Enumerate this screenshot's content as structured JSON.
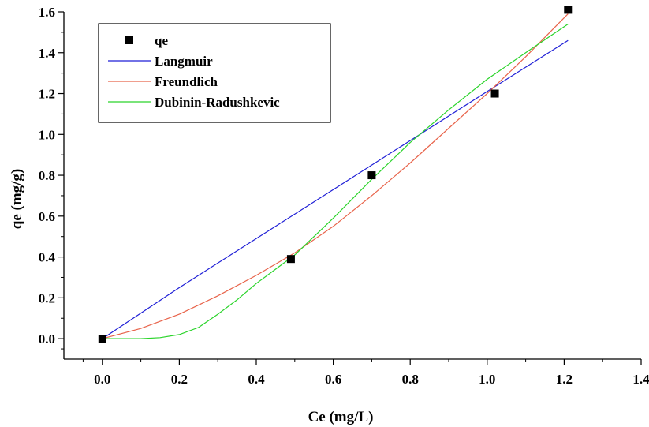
{
  "chart_data": {
    "type": "scatter",
    "xlabel": "Ce (mg/L)",
    "ylabel": "qe (mg/g)",
    "xlim": [
      -0.1,
      1.4
    ],
    "ylim": [
      -0.1,
      1.6
    ],
    "x_ticks": [
      "0.0",
      "0.2",
      "0.4",
      "0.6",
      "0.8",
      "1.0",
      "1.2",
      "1.4"
    ],
    "y_ticks": [
      "0.0",
      "0.2",
      "0.4",
      "0.6",
      "0.8",
      "1.0",
      "1.2",
      "1.4",
      "1.6"
    ],
    "legend_position": "top-left",
    "series": [
      {
        "name": "qe",
        "kind": "markers",
        "color": "#000000",
        "x": [
          0.0,
          0.49,
          0.7,
          1.02,
          1.21
        ],
        "y": [
          0.0,
          0.39,
          0.8,
          1.2,
          1.61
        ]
      },
      {
        "name": "Langmuir",
        "kind": "line",
        "color": "#1f1fd6",
        "x": [
          0.0,
          0.2,
          0.4,
          0.6,
          0.8,
          1.0,
          1.21
        ],
        "y": [
          0.0,
          0.25,
          0.49,
          0.73,
          0.97,
          1.21,
          1.46
        ]
      },
      {
        "name": "Freundlich",
        "kind": "line",
        "color": "#e8634a",
        "x": [
          0.0,
          0.1,
          0.2,
          0.3,
          0.4,
          0.5,
          0.6,
          0.7,
          0.8,
          0.9,
          1.0,
          1.1,
          1.21
        ],
        "y": [
          0.0,
          0.05,
          0.12,
          0.21,
          0.31,
          0.42,
          0.55,
          0.7,
          0.86,
          1.03,
          1.2,
          1.38,
          1.59
        ]
      },
      {
        "name": "Dubinin-Radushkevic",
        "kind": "line",
        "color": "#2bd42b",
        "x": [
          0.0,
          0.1,
          0.15,
          0.2,
          0.25,
          0.3,
          0.35,
          0.4,
          0.45,
          0.5,
          0.6,
          0.7,
          0.8,
          0.9,
          1.0,
          1.1,
          1.21
        ],
        "y": [
          0.0,
          0.0,
          0.005,
          0.02,
          0.055,
          0.12,
          0.19,
          0.27,
          0.34,
          0.41,
          0.59,
          0.78,
          0.96,
          1.12,
          1.27,
          1.4,
          1.54
        ]
      }
    ]
  }
}
